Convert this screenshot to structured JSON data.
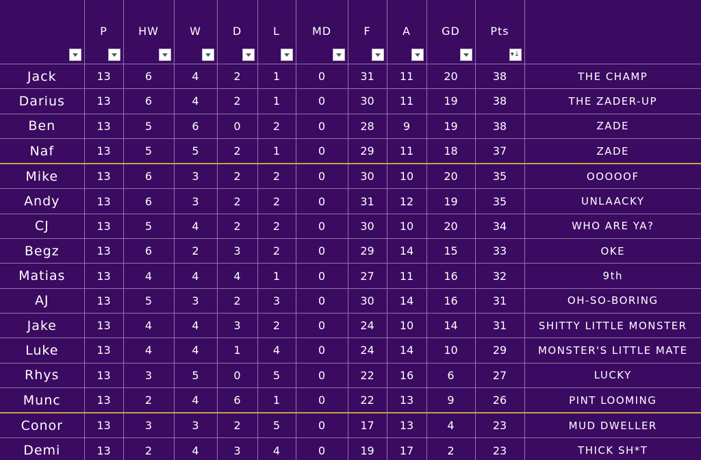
{
  "headers": [
    "P",
    "HW",
    "W",
    "D",
    "L",
    "MD",
    "F",
    "A",
    "GD",
    "Pts"
  ],
  "sorted_column": "Pts",
  "colors": {
    "background": "#3b0a61",
    "gridline": "#8e7aa6",
    "separator": "#c4a54a",
    "text": "#ffffff"
  },
  "rows": [
    {
      "name": "Jack",
      "P": "13",
      "HW": "6",
      "W": "4",
      "D": "2",
      "L": "1",
      "MD": "0",
      "F": "31",
      "A": "11",
      "GD": "20",
      "Pts": "38",
      "nickname": "THE CHAMP"
    },
    {
      "name": "Darius",
      "P": "13",
      "HW": "6",
      "W": "4",
      "D": "2",
      "L": "1",
      "MD": "0",
      "F": "30",
      "A": "11",
      "GD": "19",
      "Pts": "38",
      "nickname": "THE ZADER-UP"
    },
    {
      "name": "Ben",
      "P": "13",
      "HW": "5",
      "W": "6",
      "D": "0",
      "L": "2",
      "MD": "0",
      "F": "28",
      "A": "9",
      "GD": "19",
      "Pts": "38",
      "nickname": "ZADE"
    },
    {
      "name": "Naf",
      "P": "13",
      "HW": "5",
      "W": "5",
      "D": "2",
      "L": "1",
      "MD": "0",
      "F": "29",
      "A": "11",
      "GD": "18",
      "Pts": "37",
      "nickname": "ZADE",
      "separator_after": true
    },
    {
      "name": "Mike",
      "P": "13",
      "HW": "6",
      "W": "3",
      "D": "2",
      "L": "2",
      "MD": "0",
      "F": "30",
      "A": "10",
      "GD": "20",
      "Pts": "35",
      "nickname": "OOOOOF"
    },
    {
      "name": "Andy",
      "P": "13",
      "HW": "6",
      "W": "3",
      "D": "2",
      "L": "2",
      "MD": "0",
      "F": "31",
      "A": "12",
      "GD": "19",
      "Pts": "35",
      "nickname": "UNLAACKY"
    },
    {
      "name": "CJ",
      "P": "13",
      "HW": "5",
      "W": "4",
      "D": "2",
      "L": "2",
      "MD": "0",
      "F": "30",
      "A": "10",
      "GD": "20",
      "Pts": "34",
      "nickname": "WHO ARE YA?"
    },
    {
      "name": "Begz",
      "P": "13",
      "HW": "6",
      "W": "2",
      "D": "3",
      "L": "2",
      "MD": "0",
      "F": "29",
      "A": "14",
      "GD": "15",
      "Pts": "33",
      "nickname": "OKE"
    },
    {
      "name": "Matias",
      "P": "13",
      "HW": "4",
      "W": "4",
      "D": "4",
      "L": "1",
      "MD": "0",
      "F": "27",
      "A": "11",
      "GD": "16",
      "Pts": "32",
      "nickname": "9th"
    },
    {
      "name": "AJ",
      "P": "13",
      "HW": "5",
      "W": "3",
      "D": "2",
      "L": "3",
      "MD": "0",
      "F": "30",
      "A": "14",
      "GD": "16",
      "Pts": "31",
      "nickname": "OH-SO-BORING"
    },
    {
      "name": "Jake",
      "P": "13",
      "HW": "4",
      "W": "4",
      "D": "3",
      "L": "2",
      "MD": "0",
      "F": "24",
      "A": "10",
      "GD": "14",
      "Pts": "31",
      "nickname": "SHITTY LITTLE MONSTER"
    },
    {
      "name": "Luke",
      "P": "13",
      "HW": "4",
      "W": "4",
      "D": "1",
      "L": "4",
      "MD": "0",
      "F": "24",
      "A": "14",
      "GD": "10",
      "Pts": "29",
      "nickname": "MONSTER'S LITTLE MATE"
    },
    {
      "name": "Rhys",
      "P": "13",
      "HW": "3",
      "W": "5",
      "D": "0",
      "L": "5",
      "MD": "0",
      "F": "22",
      "A": "16",
      "GD": "6",
      "Pts": "27",
      "nickname": "LUCKY"
    },
    {
      "name": "Munc",
      "P": "13",
      "HW": "2",
      "W": "4",
      "D": "6",
      "L": "1",
      "MD": "0",
      "F": "22",
      "A": "13",
      "GD": "9",
      "Pts": "26",
      "nickname": "PINT LOOMING",
      "separator_after": true
    },
    {
      "name": "Conor",
      "P": "13",
      "HW": "3",
      "W": "3",
      "D": "2",
      "L": "5",
      "MD": "0",
      "F": "17",
      "A": "13",
      "GD": "4",
      "Pts": "23",
      "nickname": "MUD DWELLER"
    },
    {
      "name": "Demi",
      "P": "13",
      "HW": "2",
      "W": "4",
      "D": "3",
      "L": "4",
      "MD": "0",
      "F": "19",
      "A": "17",
      "GD": "2",
      "Pts": "23",
      "nickname": "THICK SH*T"
    }
  ]
}
